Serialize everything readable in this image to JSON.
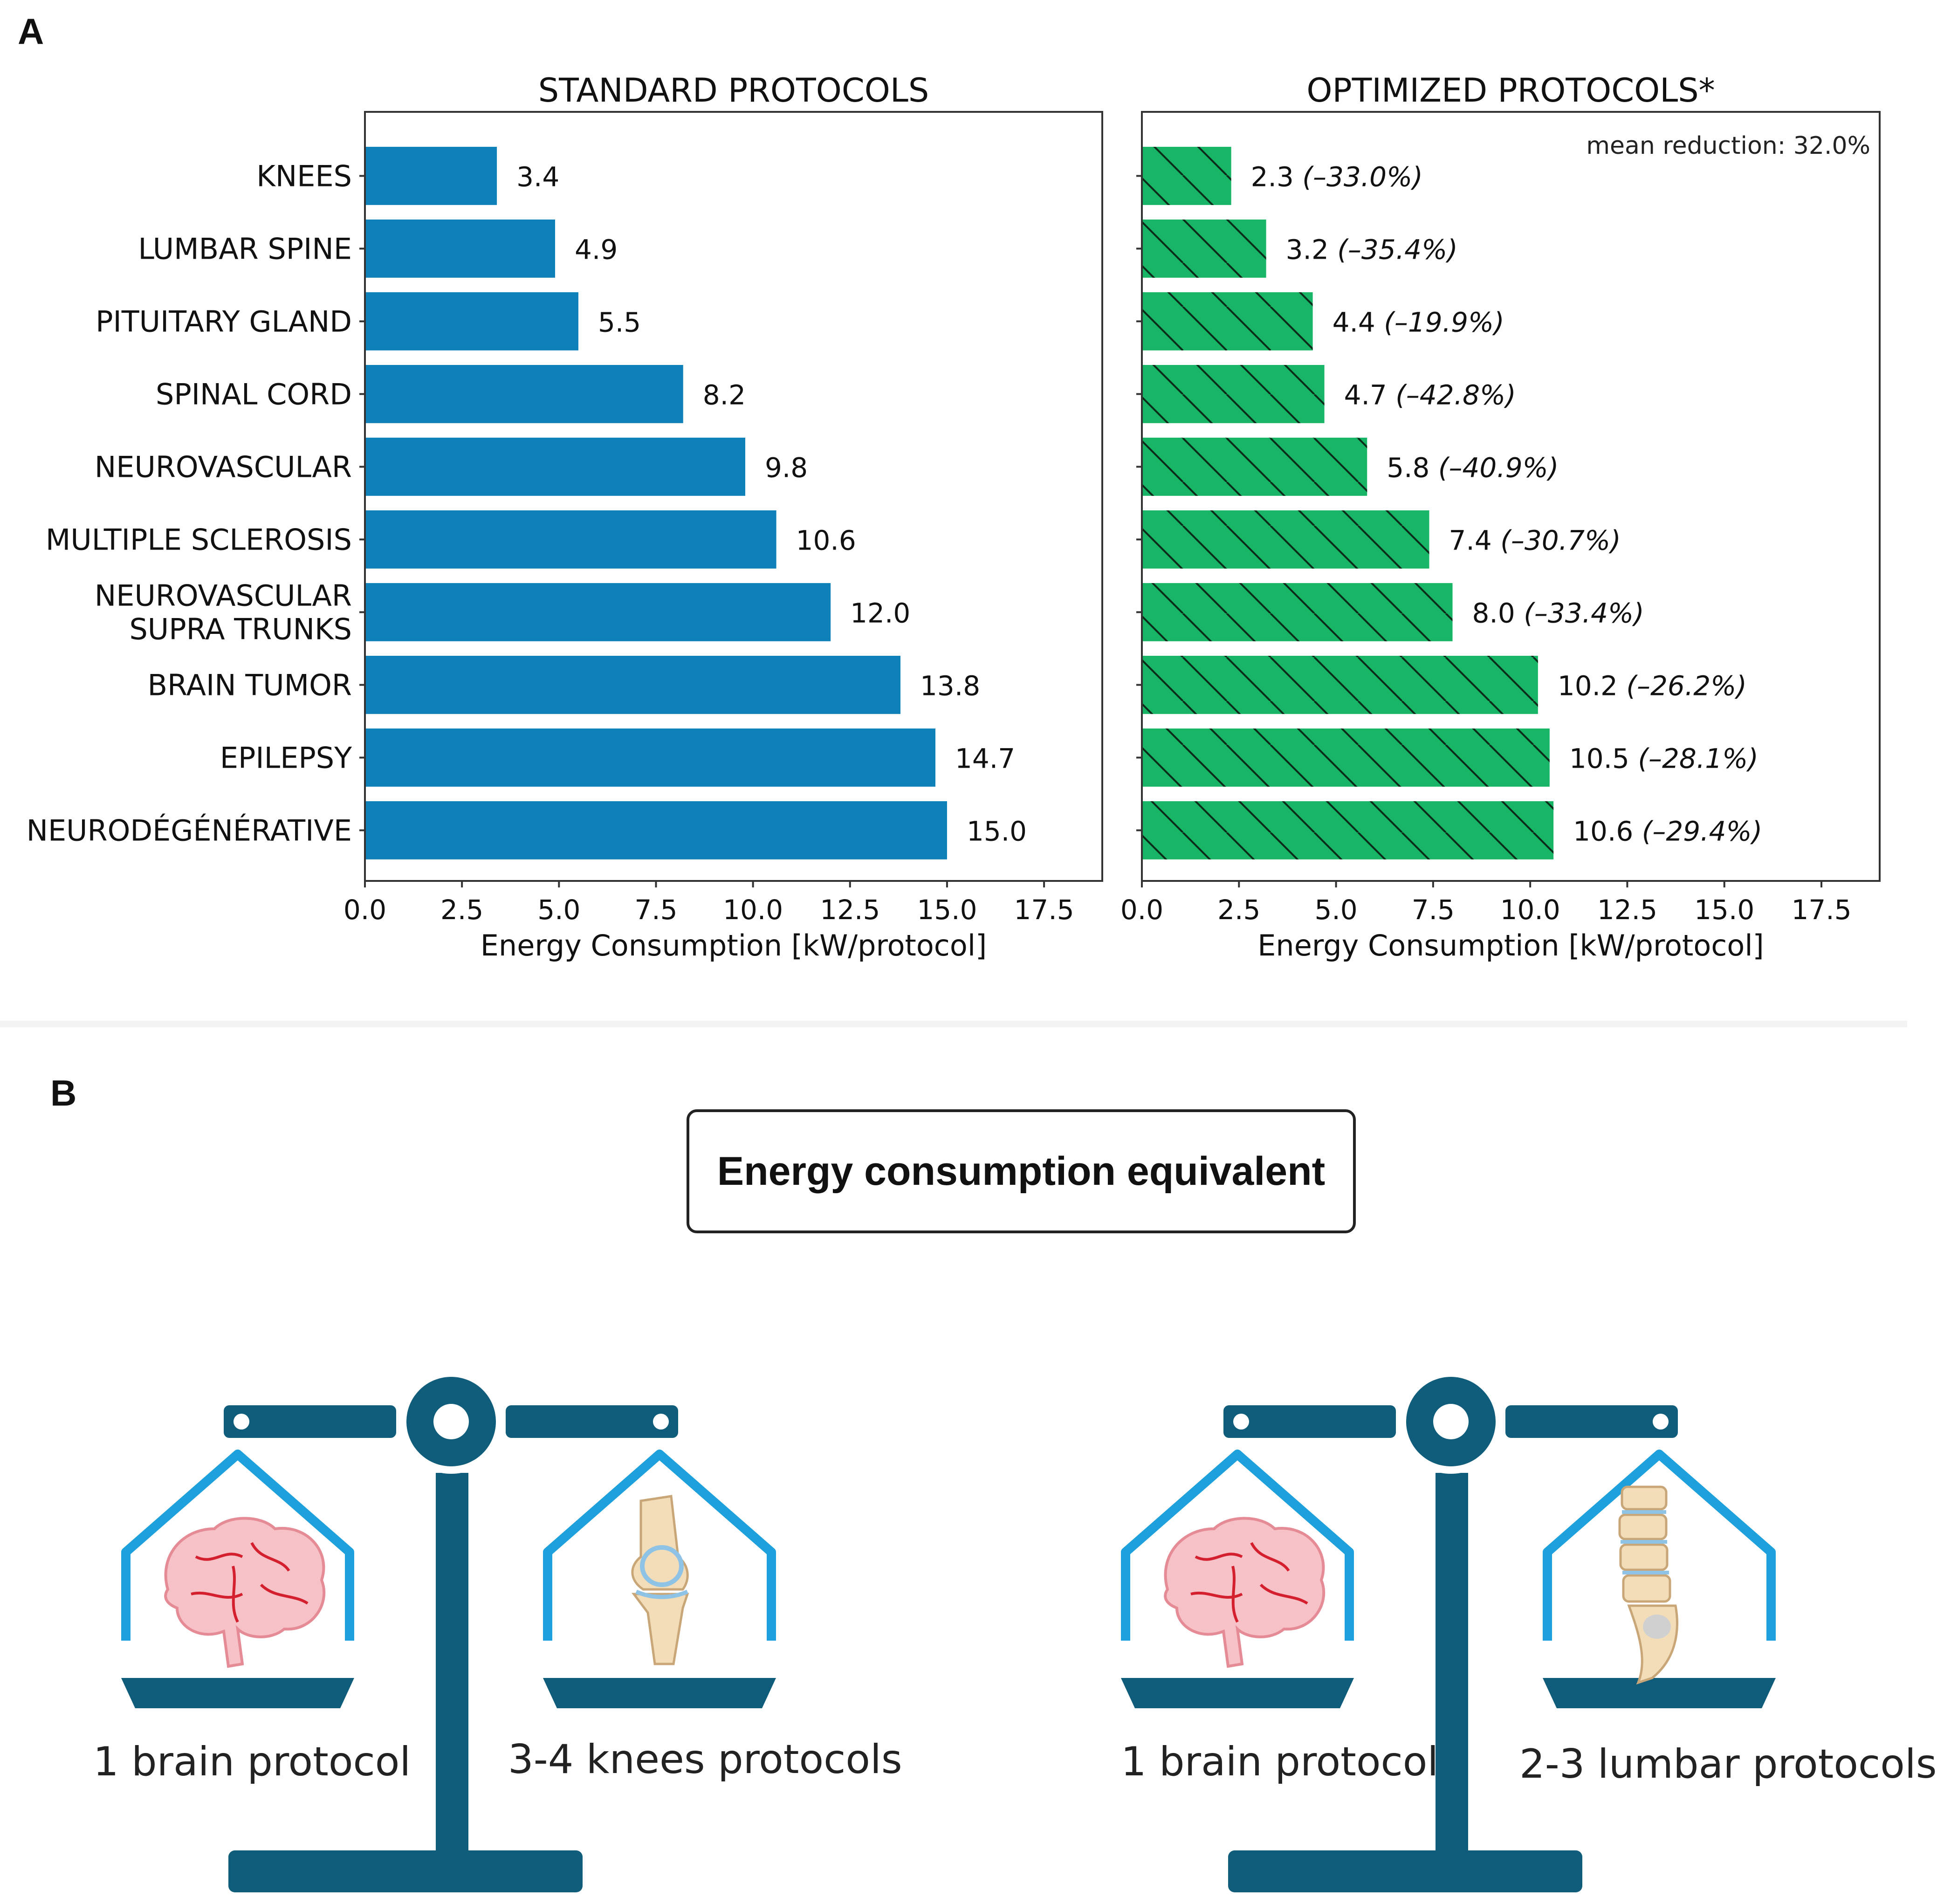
{
  "panel_a_label": "A",
  "panel_b_label": "B",
  "chart_data": [
    {
      "type": "bar",
      "orientation": "horizontal",
      "title": "STANDARD PROTOCOLS",
      "xlabel": "Energy Consumption [kW/protocol]",
      "categories": [
        "KNEES",
        "LUMBAR SPINE",
        "PITUITARY GLAND",
        "SPINAL CORD",
        "NEUROVASCULAR",
        "MULTIPLE SCLEROSIS",
        "NEUROVASCULAR\nSUPRA TRUNKS",
        "BRAIN TUMOR",
        "EPILEPSY",
        "NEURODÉGÉNÉRATIVE"
      ],
      "values": [
        3.4,
        4.9,
        5.5,
        8.2,
        9.8,
        10.6,
        12.0,
        13.8,
        14.7,
        15.0
      ],
      "value_labels": [
        "3.4",
        "4.9",
        "5.5",
        "8.2",
        "9.8",
        "10.6",
        "12.0",
        "13.8",
        "14.7",
        "15.0"
      ],
      "xlim": [
        0,
        19
      ],
      "xticks": [
        "0.0",
        "2.5",
        "5.0",
        "7.5",
        "10.0",
        "12.5",
        "15.0",
        "17.5"
      ],
      "bar_color": "#0f80b8",
      "hatch": false
    },
    {
      "type": "bar",
      "orientation": "horizontal",
      "title": "OPTIMIZED PROTOCOLS*",
      "xlabel": "Energy Consumption [kW/protocol]",
      "annotation": "mean reduction: 32.0%",
      "categories": [
        "KNEES",
        "LUMBAR SPINE",
        "PITUITARY GLAND",
        "SPINAL CORD",
        "NEUROVASCULAR",
        "MULTIPLE SCLEROSIS",
        "NEUROVASCULAR\nSUPRA TRUNKS",
        "BRAIN TUMOR",
        "EPILEPSY",
        "NEURODÉGÉNÉRATIVE"
      ],
      "values": [
        2.3,
        3.2,
        4.4,
        4.7,
        5.8,
        7.4,
        8.0,
        10.2,
        10.5,
        10.6
      ],
      "value_labels": [
        "2.3",
        "3.2",
        "4.4",
        "4.7",
        "5.8",
        "7.4",
        "8.0",
        "10.2",
        "10.5",
        "10.6"
      ],
      "reduction_labels": [
        "(–33.0%)",
        "(–35.4%)",
        "(–19.9%)",
        "(–42.8%)",
        "(–40.9%)",
        "(–30.7%)",
        "(–33.4%)",
        "(–26.2%)",
        "(–28.1%)",
        "(–29.4%)"
      ],
      "xlim": [
        0,
        19
      ],
      "xticks": [
        "0.0",
        "2.5",
        "5.0",
        "7.5",
        "10.0",
        "12.5",
        "15.0",
        "17.5"
      ],
      "bar_color": "#18b566",
      "hatch": true
    }
  ],
  "panel_b": {
    "title": "Energy consumption equivalent",
    "scale_color": "#0f5d7a",
    "pan_outline_color": "#1ea0dc",
    "scales": [
      {
        "left_label": "1 brain protocol",
        "right_label": "3-4 knees protocols",
        "left_icon": "brain-icon",
        "right_icon": "knee-joint-icon"
      },
      {
        "left_label": "1 brain protocol",
        "right_label": "2-3 lumbar protocols",
        "left_icon": "brain-icon",
        "right_icon": "lumbar-spine-icon"
      }
    ]
  }
}
